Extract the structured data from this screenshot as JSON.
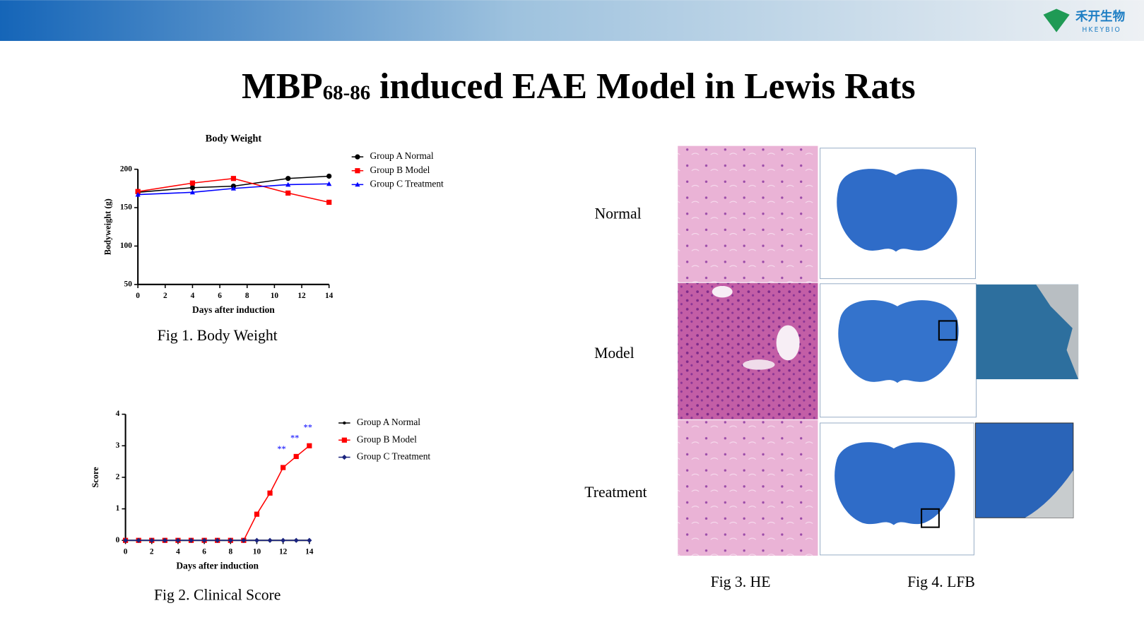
{
  "logo": {
    "name": "禾开生物",
    "latin": "HKEYBIO"
  },
  "title": {
    "main": "MBP",
    "subscript": "68-86",
    "rest": " induced EAE Model in Lewis Rats"
  },
  "chart_data": [
    {
      "type": "line",
      "title": "Body Weight",
      "xlabel": "Days after induction",
      "ylabel": "Bodyweight (g)",
      "x": [
        0,
        4,
        7,
        11,
        14
      ],
      "xlim": [
        0,
        14
      ],
      "xticks": [
        0,
        2,
        4,
        6,
        8,
        10,
        12,
        14
      ],
      "ylim": [
        50,
        200
      ],
      "yticks": [
        50,
        100,
        150,
        200
      ],
      "series": [
        {
          "name": "Group A Normal",
          "color": "#000000",
          "marker": "circle",
          "values": [
            170,
            176,
            178,
            188,
            191
          ]
        },
        {
          "name": "Group B Model",
          "color": "#ff0000",
          "marker": "square",
          "values": [
            171,
            182,
            188,
            169,
            157
          ]
        },
        {
          "name": "Group C Treatment",
          "color": "#0000ff",
          "marker": "triangle",
          "values": [
            167,
            170,
            175,
            180,
            181
          ]
        }
      ]
    },
    {
      "type": "line",
      "xlabel": "Days after induction",
      "ylabel": "Score",
      "x": [
        0,
        1,
        2,
        3,
        4,
        5,
        6,
        7,
        8,
        9,
        10,
        11,
        12,
        13,
        14
      ],
      "xlim": [
        0,
        14
      ],
      "xticks": [
        0,
        2,
        4,
        6,
        8,
        10,
        12,
        14
      ],
      "ylim": [
        0,
        4
      ],
      "yticks": [
        0,
        1,
        2,
        3,
        4
      ],
      "series": [
        {
          "name": "Group A Normal",
          "color": "#000000",
          "marker": "dot",
          "values": [
            0,
            0,
            0,
            0,
            0,
            0,
            0,
            0,
            0,
            0,
            0,
            0,
            0,
            0,
            0
          ]
        },
        {
          "name": "Group B Model",
          "color": "#ff0000",
          "marker": "square",
          "values": [
            0,
            0,
            0,
            0,
            0,
            0,
            0,
            0,
            0,
            0,
            0.83,
            1.5,
            2.31,
            2.66,
            3
          ]
        },
        {
          "name": "Group C Treatment",
          "color": "#1a237e",
          "marker": "diamond",
          "values": [
            0,
            0,
            0,
            0,
            0,
            0,
            0,
            0,
            0,
            0,
            0,
            0,
            0,
            0,
            0
          ]
        }
      ],
      "annotations": [
        "**",
        "**",
        "**"
      ],
      "annotation_color": "#0000ff"
    }
  ],
  "captions": {
    "fig1": "Fig 1. Body Weight",
    "fig2": "Fig 2. Clinical Score",
    "fig3": "Fig 3. HE",
    "fig4": "Fig 4. LFB"
  },
  "rows": [
    "Normal",
    "Model",
    "Treatment"
  ]
}
